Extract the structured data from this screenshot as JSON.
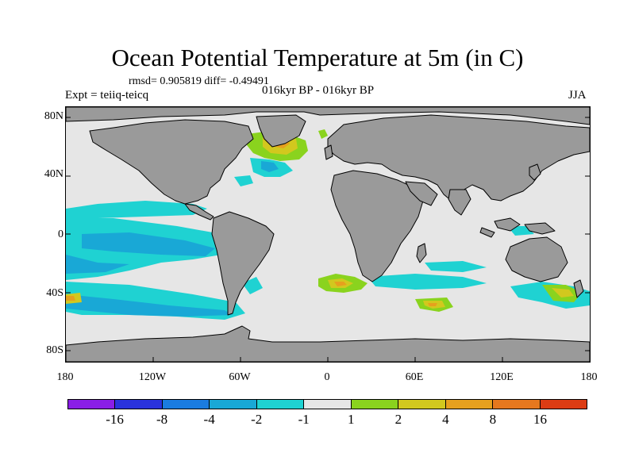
{
  "title": "Ocean Potential Temperature at 5m (in C)",
  "stats": "rmsd= 0.905819 diff= -0.49491",
  "expt": "Expt = teiiq-teicq",
  "period": "016kyr BP - 016kyr BP",
  "season": "JJA",
  "y_axis_labels": [
    "80N",
    "40N",
    "0",
    "40S",
    "80S"
  ],
  "x_axis_labels": [
    "180",
    "120W",
    "60W",
    "0",
    "60E",
    "120E",
    "180"
  ],
  "colorbar": {
    "colors": [
      "#8a1ee6",
      "#2a33dc",
      "#1a7ce0",
      "#19a8d6",
      "#1fd2d2",
      "#e6e6e6",
      "#8ad31e",
      "#d2c81e",
      "#e6a01e",
      "#e6781e",
      "#dc3c14"
    ],
    "labels": [
      "-16",
      "-8",
      "-4",
      "-2",
      "-1",
      "1",
      "2",
      "4",
      "8",
      "16"
    ]
  },
  "map_colors": {
    "ocean_neutral": "#e6e6e6",
    "land": "#9a9a9a",
    "coast": "#000000"
  }
}
